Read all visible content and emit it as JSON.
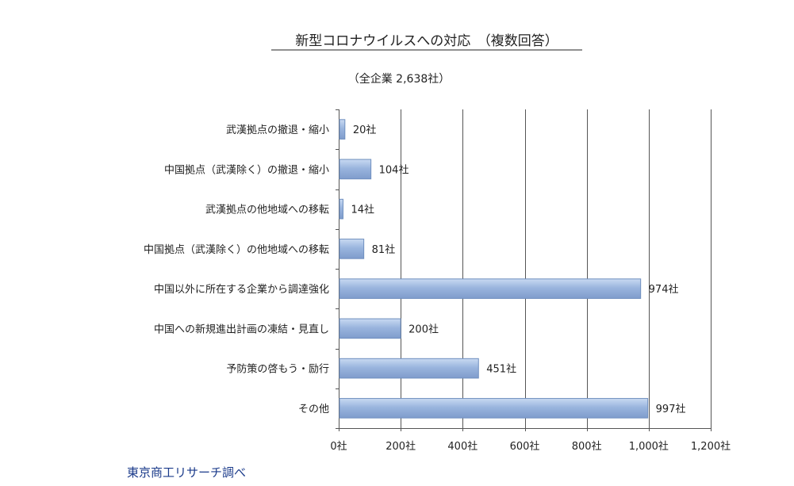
{
  "chart_data": {
    "type": "bar",
    "orientation": "horizontal",
    "title": "新型コロナウイルスへの対応　（複数回答）",
    "subtitle": "（全企業 2,638社）",
    "categories": [
      "武漢拠点の撤退・縮小",
      "中国拠点（武漢除く）の撤退・縮小",
      "武漢拠点の他地域への移転",
      "中国拠点（武漢除く）の他地域への移転",
      "中国以外に所在する企業から調達強化",
      "中国への新規進出計画の凍結・見直し",
      "予防策の啓もう・励行",
      "その他"
    ],
    "values": [
      20,
      104,
      14,
      81,
      974,
      200,
      451,
      997
    ],
    "data_labels": [
      "20社",
      "104社",
      "14社",
      "81社",
      "974社",
      "200社",
      "451社",
      "997社"
    ],
    "x_ticks": [
      0,
      200,
      400,
      600,
      800,
      1000,
      1200
    ],
    "x_tick_labels": [
      "0社",
      "200社",
      "400社",
      "600社",
      "800社",
      "1,000社",
      "1,200社"
    ],
    "xlim": [
      0,
      1200
    ],
    "grid": "vertical",
    "legend": "none",
    "bar_color": "#9ab5de",
    "source": "東京商工リサーチ調べ"
  }
}
